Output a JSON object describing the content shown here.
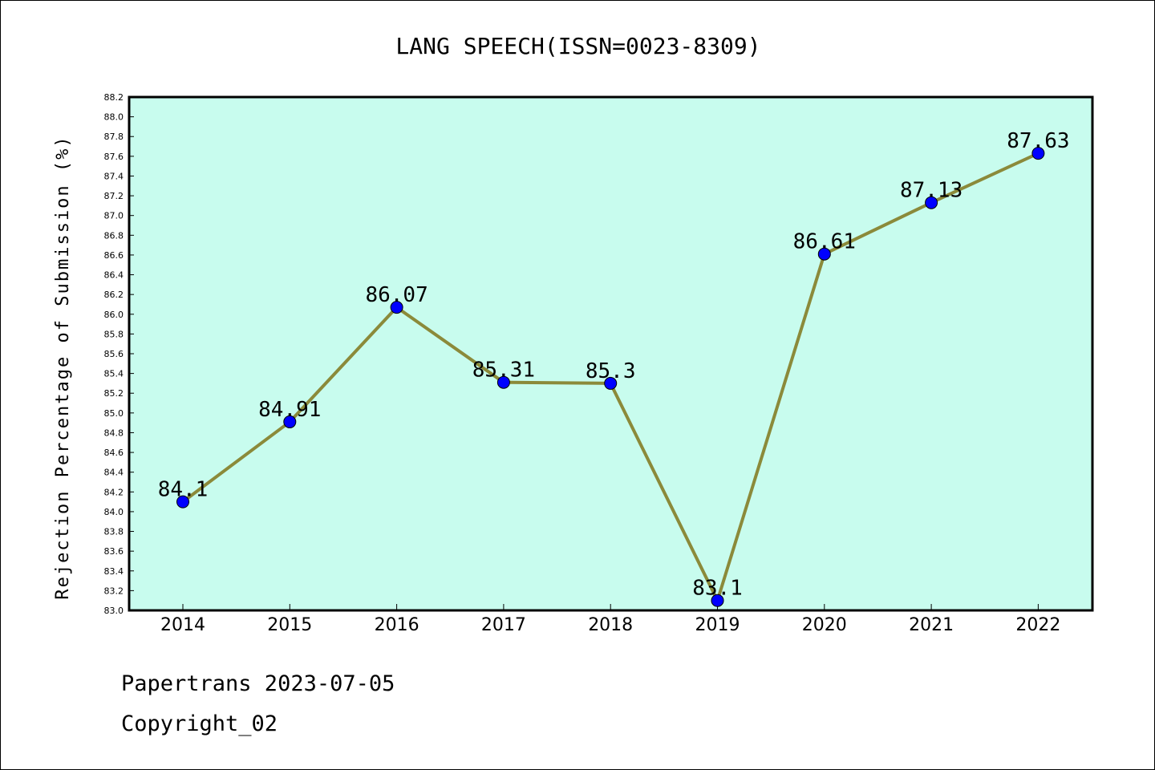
{
  "chart_data": {
    "type": "line",
    "title": "LANG SPEECH(ISSN=0023-8309)",
    "xlabel": "",
    "ylabel": "Rejection Percentage of Submission (%)",
    "categories": [
      "2014",
      "2015",
      "2016",
      "2017",
      "2018",
      "2019",
      "2020",
      "2021",
      "2022"
    ],
    "series": [
      {
        "values": [
          84.1,
          84.91,
          86.07,
          85.31,
          85.3,
          83.1,
          86.61,
          87.13,
          87.63
        ],
        "labels": [
          "84.1",
          "84.91",
          "86.07",
          "85.31",
          "85.3",
          "83.1",
          "86.61",
          "87.13",
          "87.63"
        ]
      }
    ],
    "ylim": [
      83.0,
      88.2
    ],
    "ytick_step": 0.2,
    "grid": false,
    "legend": "none",
    "colors": {
      "plot_background": "#c8fcee",
      "line": "#8b8a3a",
      "marker": "#0000ff"
    }
  },
  "footer": {
    "source": "Papertrans 2023-07-05",
    "copyright": "Copyright_02"
  }
}
